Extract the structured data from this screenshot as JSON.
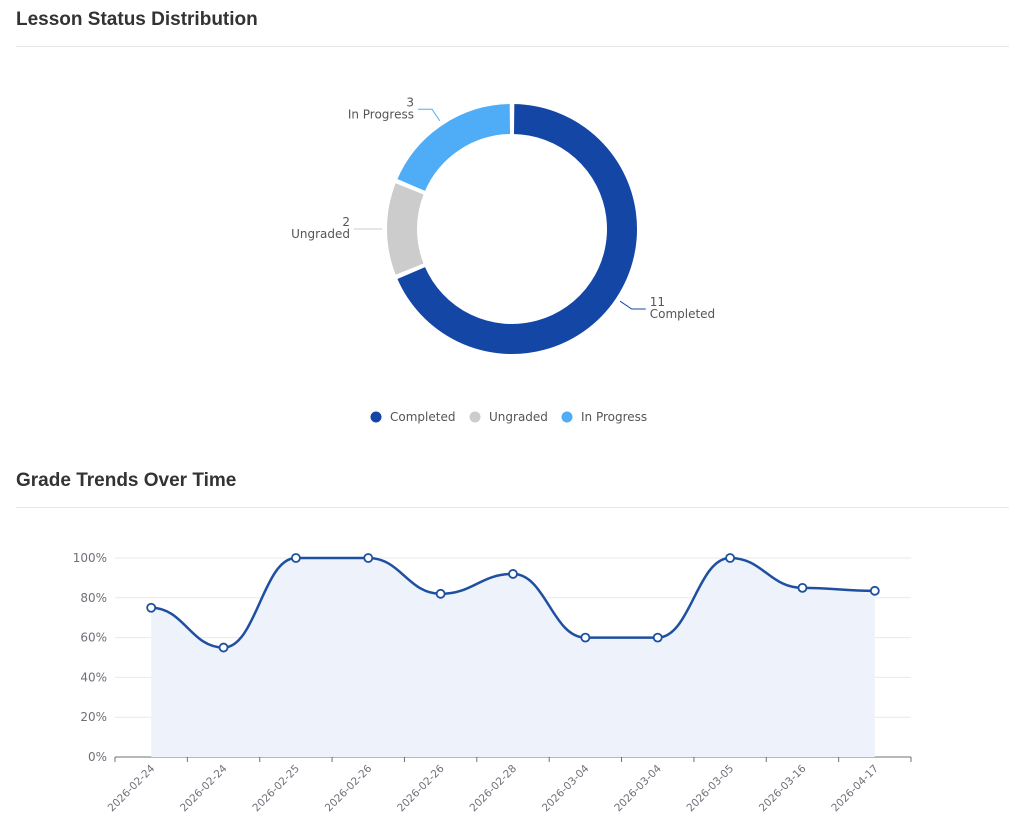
{
  "sections": {
    "status_title": "Lesson Status Distribution",
    "trends_title": "Grade Trends Over Time"
  },
  "chart_data": [
    {
      "type": "pie",
      "variant": "donut",
      "title": "Lesson Status Distribution",
      "categories": [
        "Completed",
        "Ungraded",
        "In Progress"
      ],
      "values": [
        11,
        2,
        3
      ],
      "colors": [
        "#1346a5",
        "#cccccc",
        "#4fadf7"
      ],
      "legend": "bottom-center",
      "slice_labels": "outside"
    },
    {
      "type": "area",
      "title": "Grade Trends Over Time",
      "categories": [
        "2026-02-24",
        "2026-02-24",
        "2026-02-25",
        "2026-02-26",
        "2026-02-26",
        "2026-02-28",
        "2026-03-04",
        "2026-03-04",
        "2026-03-05",
        "2026-03-16",
        "2026-04-17"
      ],
      "values": [
        75,
        55,
        100,
        100,
        82,
        92,
        60,
        60,
        100,
        85,
        83.5
      ],
      "ylim": [
        0,
        100
      ],
      "yticks": [
        "0%",
        "20%",
        "40%",
        "60%",
        "80%",
        "100%"
      ],
      "grid": true,
      "smooth": true,
      "line_color": "#1e4fa0",
      "fill_color": "#eef2fb"
    }
  ]
}
